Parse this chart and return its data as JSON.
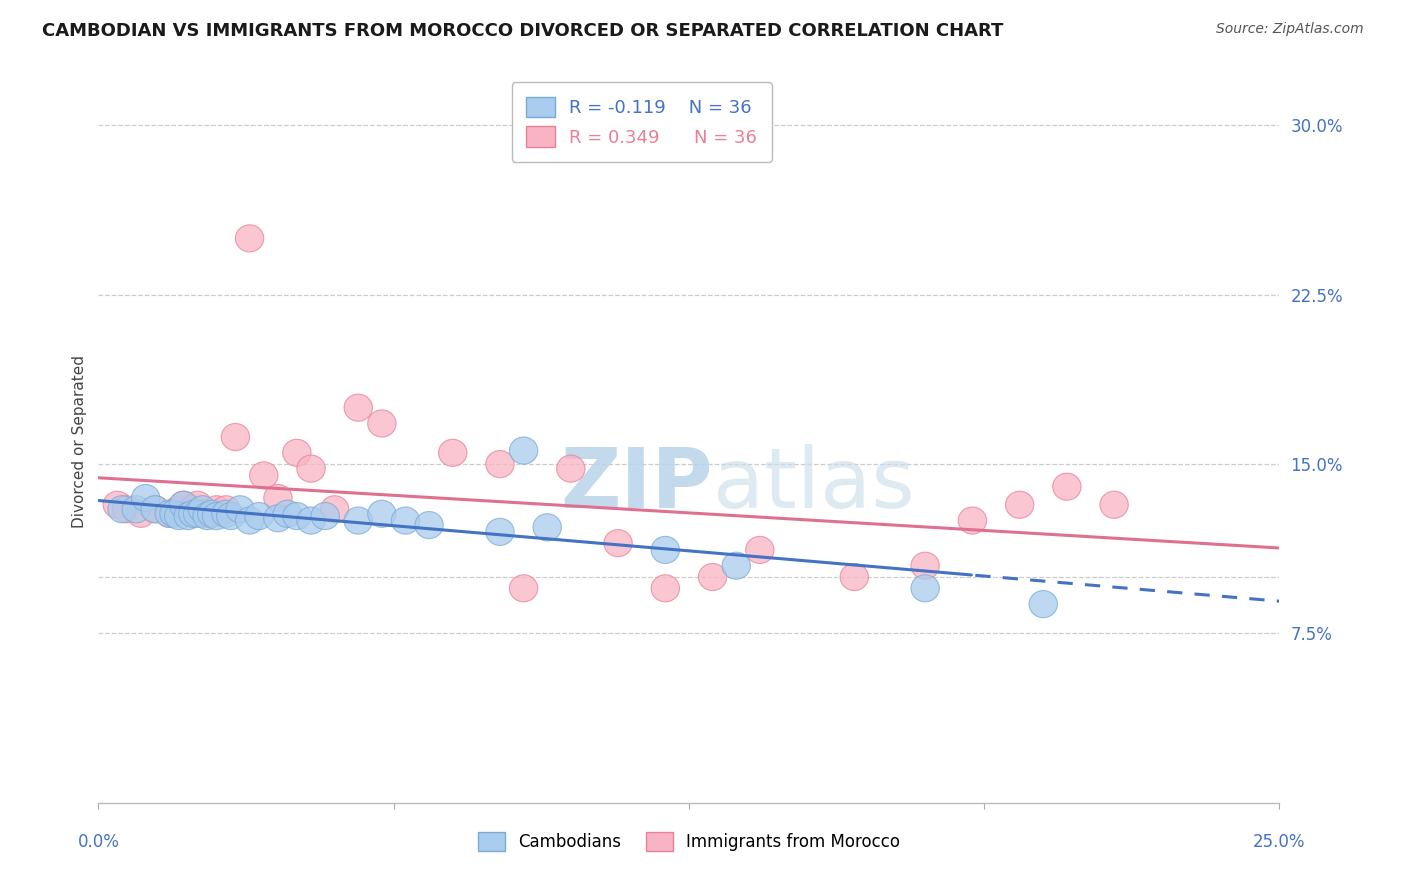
{
  "title": "CAMBODIAN VS IMMIGRANTS FROM MOROCCO DIVORCED OR SEPARATED CORRELATION CHART",
  "source": "Source: ZipAtlas.com",
  "ylabel": "Divorced or Separated",
  "xlim": [
    0.0,
    0.25
  ],
  "ylim": [
    0.0,
    0.32
  ],
  "grid_yticks": [
    0.075,
    0.1,
    0.15,
    0.225,
    0.3
  ],
  "ytick_labels": [
    "7.5%",
    "",
    "15.0%",
    "22.5%",
    "30.0%"
  ],
  "xtick_vals": [
    0.0,
    0.0625,
    0.125,
    0.1875,
    0.25
  ],
  "grid_color": "#cccccc",
  "watermark_text": "ZIPatlas",
  "watermark_color": "#c8dff0",
  "cambodian_color": "#aaccee",
  "cambodian_edge": "#7aaad4",
  "morocco_color": "#f8b4c4",
  "morocco_edge": "#e88098",
  "trendline_cambodian_color": "#4472c4",
  "trendline_morocco_color": "#e07090",
  "background_color": "#ffffff",
  "cambodian_x": [
    0.005,
    0.008,
    0.01,
    0.012,
    0.015,
    0.016,
    0.017,
    0.018,
    0.019,
    0.02,
    0.021,
    0.022,
    0.023,
    0.024,
    0.025,
    0.027,
    0.028,
    0.03,
    0.032,
    0.034,
    0.038,
    0.04,
    0.042,
    0.045,
    0.048,
    0.055,
    0.06,
    0.065,
    0.07,
    0.085,
    0.09,
    0.095,
    0.12,
    0.135,
    0.175,
    0.2
  ],
  "cambodian_y": [
    0.13,
    0.13,
    0.135,
    0.13,
    0.128,
    0.128,
    0.127,
    0.132,
    0.127,
    0.128,
    0.128,
    0.13,
    0.127,
    0.128,
    0.127,
    0.128,
    0.127,
    0.13,
    0.125,
    0.127,
    0.126,
    0.128,
    0.127,
    0.125,
    0.127,
    0.125,
    0.128,
    0.125,
    0.123,
    0.12,
    0.156,
    0.122,
    0.112,
    0.105,
    0.095,
    0.088
  ],
  "morocco_x": [
    0.004,
    0.006,
    0.009,
    0.012,
    0.015,
    0.017,
    0.018,
    0.02,
    0.021,
    0.022,
    0.023,
    0.025,
    0.027,
    0.029,
    0.032,
    0.035,
    0.038,
    0.042,
    0.045,
    0.05,
    0.055,
    0.06,
    0.075,
    0.085,
    0.09,
    0.1,
    0.11,
    0.12,
    0.13,
    0.14,
    0.16,
    0.175,
    0.185,
    0.195,
    0.205,
    0.215
  ],
  "morocco_y": [
    0.132,
    0.13,
    0.128,
    0.13,
    0.128,
    0.13,
    0.132,
    0.13,
    0.132,
    0.128,
    0.128,
    0.13,
    0.13,
    0.162,
    0.25,
    0.145,
    0.135,
    0.155,
    0.148,
    0.13,
    0.175,
    0.168,
    0.155,
    0.15,
    0.095,
    0.148,
    0.115,
    0.095,
    0.1,
    0.112,
    0.1,
    0.105,
    0.125,
    0.132,
    0.14,
    0.132
  ]
}
